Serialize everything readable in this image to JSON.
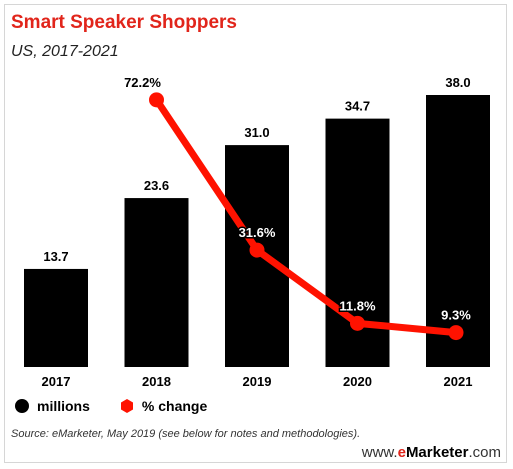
{
  "header": {
    "title": "Smart Speaker Shoppers",
    "subtitle": "US, 2017-2021"
  },
  "legend": {
    "bars_label": "millions",
    "line_label": "% change"
  },
  "footer": {
    "source": "Source: eMarketer, May 2019 (see below for notes and methodologies).",
    "brand_prefix": "www.",
    "brand_e": "e",
    "brand_name": "Marketer",
    "brand_suffix": ".com"
  },
  "colors": {
    "bars": "#000000",
    "line": "#ff1200",
    "title": "#e1251b"
  },
  "chart_data": {
    "type": "bar",
    "categories": [
      "2017",
      "2018",
      "2019",
      "2020",
      "2021"
    ],
    "series": [
      {
        "name": "millions",
        "type": "bar",
        "values": [
          13.7,
          23.6,
          31.0,
          34.7,
          38.0
        ],
        "labels": [
          "13.7",
          "23.6",
          "31.0",
          "34.7",
          "38.0"
        ]
      },
      {
        "name": "% change",
        "type": "line",
        "values": [
          null,
          72.2,
          31.6,
          11.8,
          9.3
        ],
        "labels": [
          "",
          "72.2%",
          "31.6%",
          "11.8%",
          "9.3%"
        ]
      }
    ],
    "title": "Smart Speaker Shoppers",
    "subtitle": "US, 2017-2021",
    "ylim": [
      0,
      38.0
    ],
    "line_ylim": [
      0,
      80
    ],
    "grid": false,
    "legend_position": "bottom-left"
  }
}
